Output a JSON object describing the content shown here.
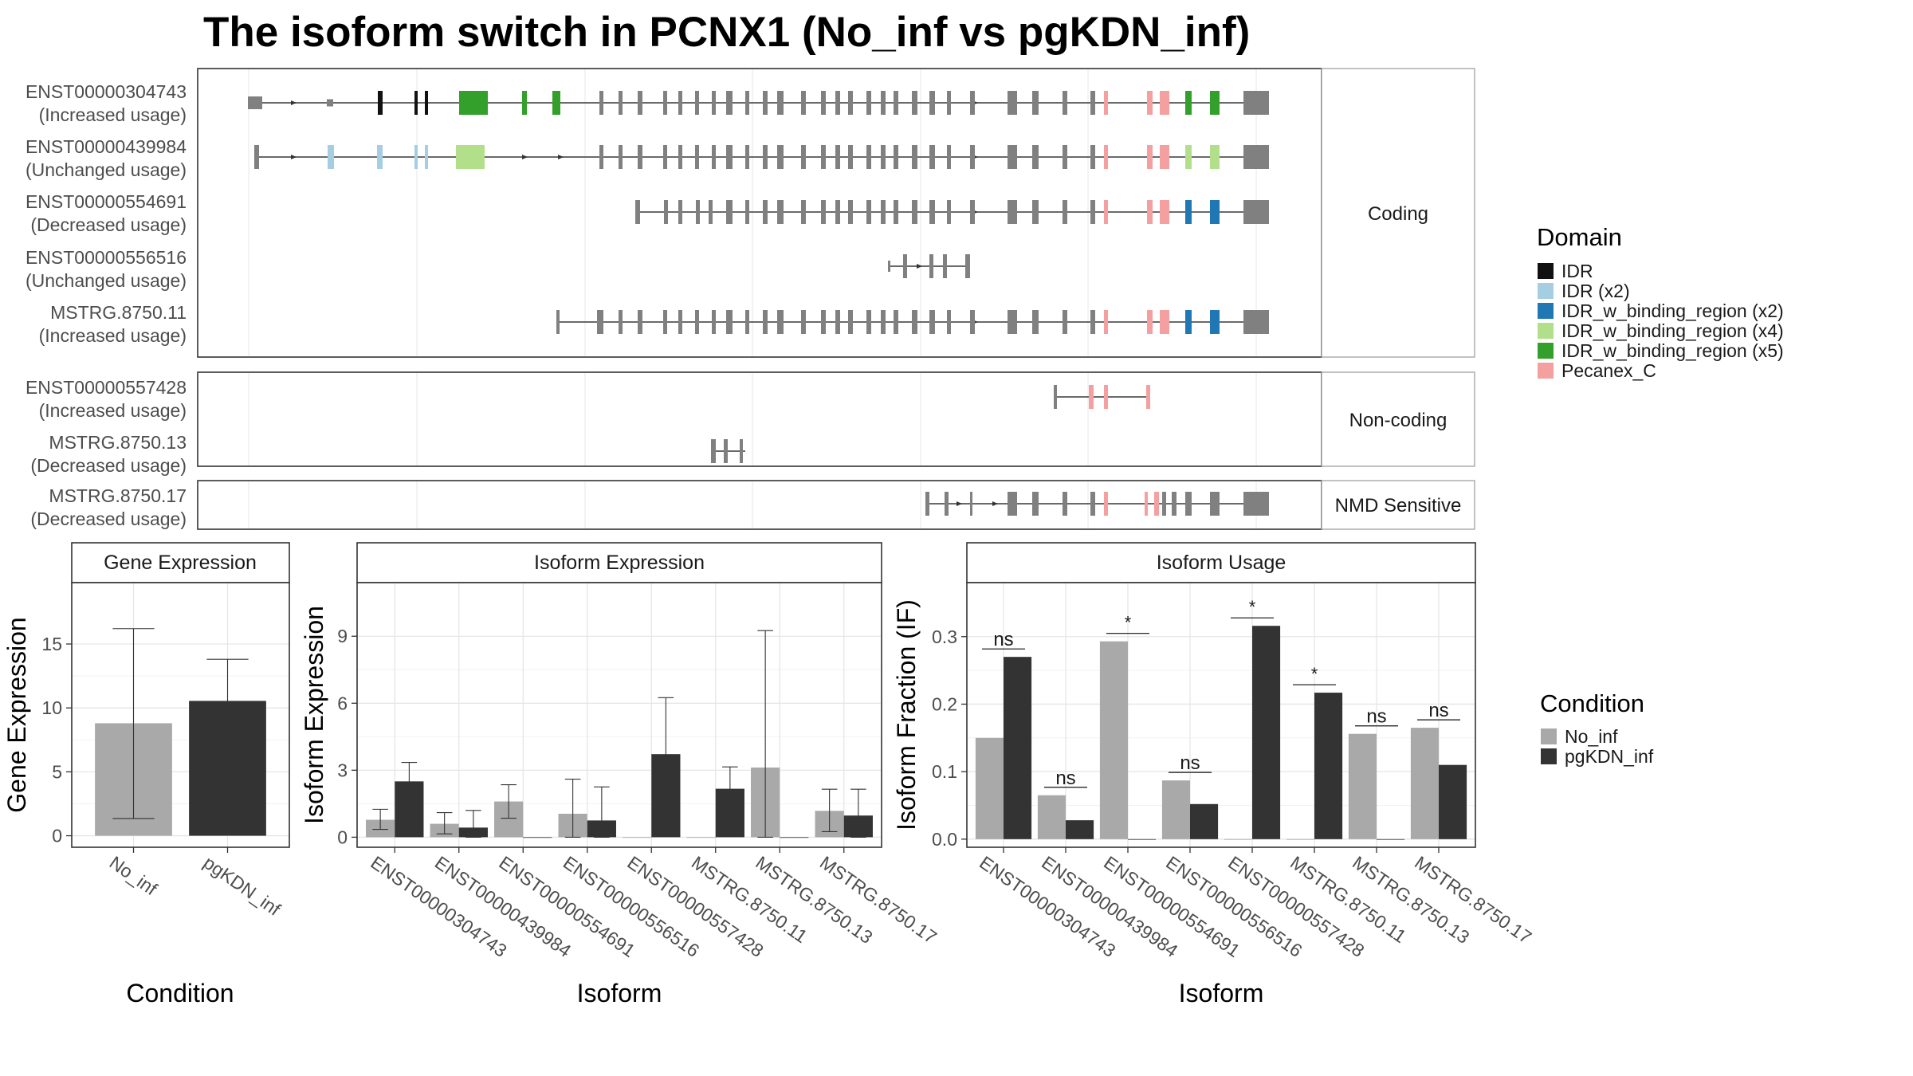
{
  "title": "The isoform switch in PCNX1 (No_inf vs pgKDN_inf)",
  "colors": {
    "no_inf": "#a9a9a9",
    "pgkdn_inf": "#333333",
    "exon": "#808080",
    "IDR": "#111111",
    "IDR_x2": "#a6cee3",
    "IDR_binding_x2": "#1f78b4",
    "IDR_binding_x4": "#b2df8a",
    "IDR_binding_x5": "#33a02c",
    "Pecanex_C": "#f4a0a0"
  },
  "domain_legend": {
    "title": "Domain",
    "items": [
      {
        "label": "IDR",
        "color": "#111111"
      },
      {
        "label": "IDR (x2)",
        "color": "#a6cee3"
      },
      {
        "label": "IDR_w_binding_region (x2)",
        "color": "#1f78b4"
      },
      {
        "label": "IDR_w_binding_region (x4)",
        "color": "#b2df8a"
      },
      {
        "label": "IDR_w_binding_region (x5)",
        "color": "#33a02c"
      },
      {
        "label": "Pecanex_C",
        "color": "#f4a0a0"
      }
    ]
  },
  "condition_legend": {
    "title": "Condition",
    "items": [
      {
        "label": "No_inf",
        "color": "#a9a9a9"
      },
      {
        "label": "pgKDN_inf",
        "color": "#333333"
      }
    ]
  },
  "structure": {
    "groups": [
      {
        "label": "Coding",
        "isoforms": [
          {
            "id": "ENST00000304743",
            "status": "(Increased usage)"
          },
          {
            "id": "ENST00000439984",
            "status": "(Unchanged usage)"
          },
          {
            "id": "ENST00000554691",
            "status": "(Decreased usage)"
          },
          {
            "id": "ENST00000556516",
            "status": "(Unchanged usage)"
          },
          {
            "id": "MSTRG.8750.11",
            "status": "(Increased usage)"
          }
        ]
      },
      {
        "label": "Non-coding",
        "isoforms": [
          {
            "id": "ENST00000557428",
            "status": "(Increased usage)"
          },
          {
            "id": "MSTRG.8750.13",
            "status": "(Decreased usage)"
          }
        ]
      },
      {
        "label": "NMD Sensitive",
        "isoforms": [
          {
            "id": "MSTRG.8750.17",
            "status": "(Decreased usage)"
          }
        ]
      }
    ]
  },
  "chart_data": [
    {
      "type": "bar",
      "title": "Gene Expression",
      "xlabel": "Condition",
      "ylabel": "Gene Expression",
      "categories": [
        "No_inf",
        "pgKDN_inf"
      ],
      "values": [
        8.8,
        10.55
      ],
      "error_low": [
        1.35,
        7.3
      ],
      "error_high": [
        16.2,
        13.8
      ],
      "yticks": [
        0,
        5,
        10,
        15
      ],
      "ylim": [
        -0.9,
        19.8
      ]
    },
    {
      "type": "bar",
      "title": "Isoform Expression",
      "xlabel": "Isoform",
      "ylabel": "Isoform Expression",
      "categories": [
        "ENST00000304743",
        "ENST00000439984",
        "ENST00000554691",
        "ENST00000556516",
        "ENST00000557428",
        "MSTRG.8750.11",
        "MSTRG.8750.13",
        "MSTRG.8750.17"
      ],
      "series": [
        {
          "name": "No_inf",
          "values": [
            0.78,
            0.6,
            1.6,
            1.05,
            0.0,
            0.0,
            3.12,
            1.18
          ],
          "error_low": [
            0.35,
            0.15,
            0.85,
            0.0,
            0.0,
            0.0,
            0.0,
            0.25
          ],
          "error_high": [
            1.25,
            1.1,
            2.35,
            2.6,
            0.0,
            0.0,
            9.25,
            2.15
          ]
        },
        {
          "name": "pgKDN_inf",
          "values": [
            2.5,
            0.43,
            0.0,
            0.75,
            3.72,
            2.17,
            0.0,
            0.97
          ],
          "error_low": [
            1.65,
            0.0,
            0.0,
            0.0,
            1.2,
            1.2,
            0.0,
            0.0
          ],
          "error_high": [
            3.35,
            1.2,
            0.0,
            2.25,
            6.25,
            3.15,
            0.0,
            2.15
          ]
        }
      ],
      "yticks": [
        0,
        3,
        6,
        9
      ],
      "ylim": [
        -0.45,
        11.4
      ]
    },
    {
      "type": "bar",
      "title": "Isoform Usage",
      "xlabel": "Isoform",
      "ylabel": "Isoform Fraction (IF)",
      "categories": [
        "ENST00000304743",
        "ENST00000439984",
        "ENST00000554691",
        "ENST00000556516",
        "ENST00000557428",
        "MSTRG.8750.11",
        "MSTRG.8750.13",
        "MSTRG.8750.17"
      ],
      "series": [
        {
          "name": "No_inf",
          "values": [
            0.15,
            0.065,
            0.293,
            0.087,
            0.0,
            0.0,
            0.156,
            0.165
          ]
        },
        {
          "name": "pgKDN_inf",
          "values": [
            0.27,
            0.028,
            0.0,
            0.052,
            0.316,
            0.217,
            0.0,
            0.11
          ]
        }
      ],
      "significance": [
        "ns",
        "ns",
        "*",
        "ns",
        "*",
        "*",
        "ns",
        "ns"
      ],
      "yticks": [
        0.0,
        0.1,
        0.2,
        0.3
      ],
      "ylim": [
        -0.012,
        0.38
      ]
    }
  ]
}
